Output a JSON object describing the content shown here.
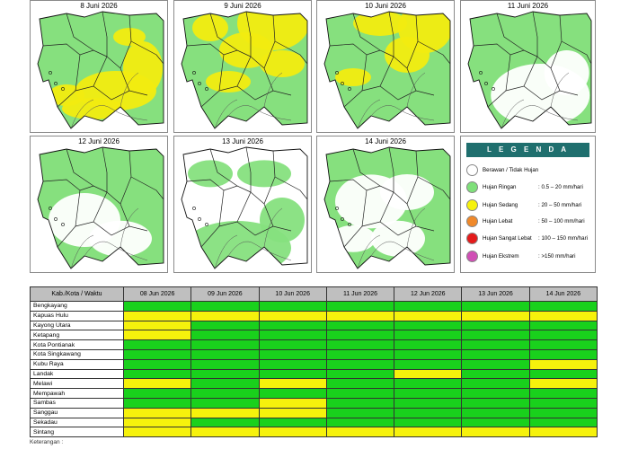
{
  "maps": [
    {
      "date": "8 Juni 2026"
    },
    {
      "date": "9 Juni 2026"
    },
    {
      "date": "10 Juni 2026"
    },
    {
      "date": "11 Juni 2026"
    },
    {
      "date": "12 Juni 2026"
    },
    {
      "date": "13 Juni 2026"
    },
    {
      "date": "14 Juni 2026"
    }
  ],
  "legend": {
    "title": "L E G E N D A",
    "items": [
      {
        "label": "Berawan / Tidak Hujan",
        "range": "",
        "color": "#ffffff"
      },
      {
        "label": "Hujan Ringan",
        "range": ": 0.5 – 20 mm/hari",
        "color": "#7fe07a"
      },
      {
        "label": "Hujan Sedang",
        "range": ": 20 – 50 mm/hari",
        "color": "#f6f20c"
      },
      {
        "label": "Hujan Lebat",
        "range": ": 50 – 100 mm/hari",
        "color": "#f0892a"
      },
      {
        "label": "Hujan Sangat Lebat",
        "range": ": 100 – 150 mm/hari",
        "color": "#e41b1b"
      },
      {
        "label": "Hujan Ekstrem",
        "range": ": >150 mm/hari",
        "color": "#d04fb5"
      }
    ]
  },
  "table": {
    "header_first": "Kab./Kota / Waktu",
    "dates": [
      "08 Jun 2026",
      "09 Jun 2026",
      "10 Jun 2026",
      "11 Jun 2026",
      "12 Jun 2026",
      "13 Jun 2026",
      "14 Jun 2026"
    ],
    "colors": {
      "G": "#19d11c",
      "Y": "#f6f20c"
    },
    "rows": [
      {
        "name": "Bengkayang",
        "cells": [
          "G",
          "G",
          "G",
          "G",
          "G",
          "G",
          "G"
        ]
      },
      {
        "name": "Kapuas Hulu",
        "cells": [
          "Y",
          "Y",
          "Y",
          "Y",
          "Y",
          "Y",
          "Y"
        ]
      },
      {
        "name": "Kayong Utara",
        "cells": [
          "Y",
          "G",
          "G",
          "G",
          "G",
          "G",
          "G"
        ]
      },
      {
        "name": "Ketapang",
        "cells": [
          "Y",
          "G",
          "G",
          "G",
          "G",
          "G",
          "G"
        ]
      },
      {
        "name": "Kota Pontianak",
        "cells": [
          "G",
          "G",
          "G",
          "G",
          "G",
          "G",
          "G"
        ]
      },
      {
        "name": "Kota Singkawang",
        "cells": [
          "G",
          "G",
          "G",
          "G",
          "G",
          "G",
          "G"
        ]
      },
      {
        "name": "Kubu Raya",
        "cells": [
          "G",
          "G",
          "G",
          "G",
          "G",
          "G",
          "Y"
        ]
      },
      {
        "name": "Landak",
        "cells": [
          "G",
          "G",
          "G",
          "G",
          "Y",
          "G",
          "G"
        ]
      },
      {
        "name": "Melawi",
        "cells": [
          "Y",
          "G",
          "Y",
          "G",
          "G",
          "G",
          "Y"
        ]
      },
      {
        "name": "Mempawah",
        "cells": [
          "G",
          "G",
          "G",
          "G",
          "G",
          "G",
          "G"
        ]
      },
      {
        "name": "Sambas",
        "cells": [
          "G",
          "G",
          "Y",
          "G",
          "G",
          "G",
          "G"
        ]
      },
      {
        "name": "Sanggau",
        "cells": [
          "Y",
          "Y",
          "Y",
          "G",
          "G",
          "G",
          "G"
        ]
      },
      {
        "name": "Sekadau",
        "cells": [
          "Y",
          "G",
          "G",
          "G",
          "G",
          "G",
          "G"
        ]
      },
      {
        "name": "Sintang",
        "cells": [
          "Y",
          "Y",
          "Y",
          "Y",
          "Y",
          "Y",
          "Y"
        ]
      }
    ]
  },
  "notes_label": "Keterangan :"
}
